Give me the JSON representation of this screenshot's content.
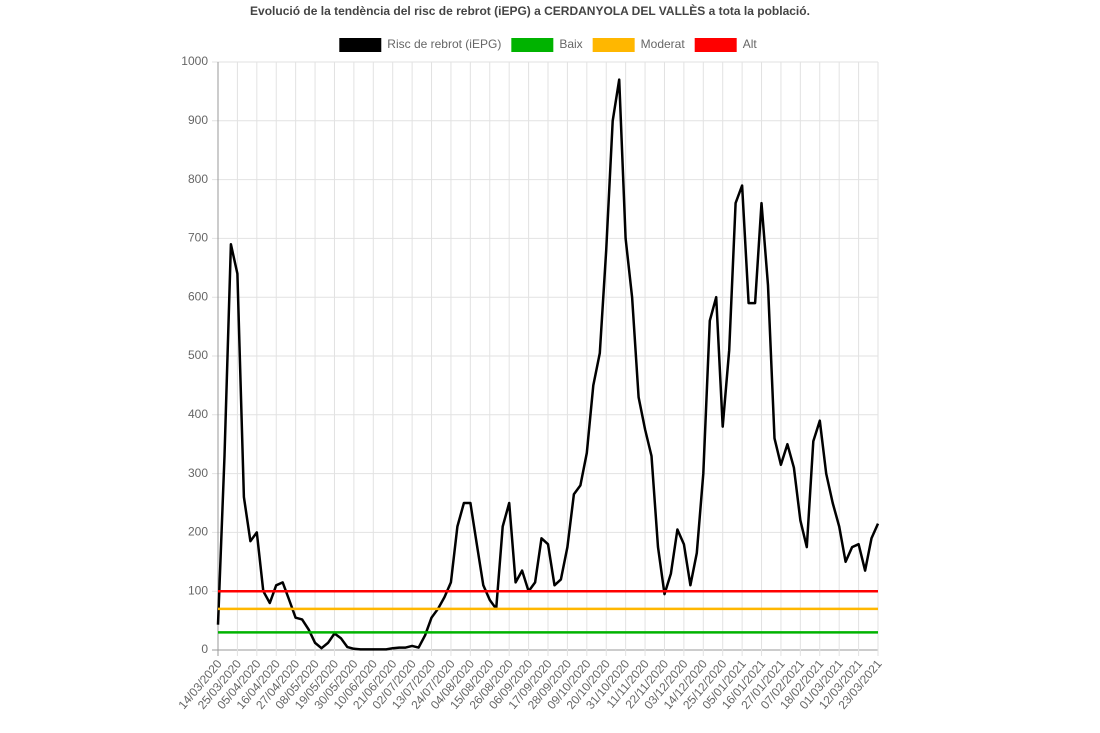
{
  "chart_data": {
    "type": "line",
    "title": "Evolució de la tendència del risc de rebrot (iEPG) a CERDANYOLA DEL VALLÈS a tota la població.",
    "categories": [
      "14/03/2020",
      null,
      null,
      "25/03/2020",
      null,
      null,
      "05/04/2020",
      null,
      null,
      "16/04/2020",
      null,
      null,
      "27/04/2020",
      null,
      null,
      "08/05/2020",
      null,
      null,
      "19/05/2020",
      null,
      null,
      "30/05/2020",
      null,
      null,
      "10/06/2020",
      null,
      null,
      "21/06/2020",
      null,
      null,
      "02/07/2020",
      null,
      null,
      "13/07/2020",
      null,
      null,
      "24/07/2020",
      null,
      null,
      "04/08/2020",
      null,
      null,
      "15/08/2020",
      null,
      null,
      "26/08/2020",
      null,
      null,
      "06/09/2020",
      null,
      null,
      "17/09/2020",
      null,
      null,
      "28/09/2020",
      null,
      null,
      "09/10/2020",
      null,
      null,
      "20/10/2020",
      null,
      null,
      "31/10/2020",
      null,
      null,
      "11/11/2020",
      null,
      null,
      "22/11/2020",
      null,
      null,
      "03/12/2020",
      null,
      null,
      "14/12/2020",
      null,
      null,
      "25/12/2020",
      null,
      null,
      "05/01/2021",
      null,
      null,
      "16/01/2021",
      null,
      null,
      "27/01/2021",
      null,
      null,
      "07/02/2021",
      null,
      null,
      "18/02/2021",
      null,
      null,
      "01/03/2021",
      null,
      null,
      "12/03/2021",
      null,
      null,
      "23/03/2021"
    ],
    "series": [
      {
        "name": "Risc de rebrot (iEPG)",
        "color": "#000000",
        "values": [
          43,
          330,
          690,
          640,
          260,
          185,
          200,
          100,
          80,
          110,
          115,
          85,
          55,
          52,
          35,
          12,
          3,
          12,
          28,
          20,
          5,
          2,
          1,
          1,
          1,
          1,
          1,
          3,
          4,
          4,
          7,
          4,
          25,
          55,
          70,
          90,
          115,
          210,
          250,
          250,
          180,
          110,
          85,
          70,
          210,
          250,
          115,
          135,
          100,
          115,
          190,
          180,
          110,
          120,
          175,
          265,
          280,
          335,
          450,
          505,
          680,
          900,
          970,
          700,
          600,
          430,
          375,
          330,
          175,
          95,
          130,
          205,
          180,
          110,
          165,
          300,
          560,
          600,
          380,
          510,
          760,
          790,
          590,
          590,
          760,
          620,
          360,
          315,
          350,
          310,
          220,
          175,
          355,
          390,
          300,
          250,
          210,
          150,
          175,
          180,
          135,
          190,
          215
        ]
      },
      {
        "name": "Baix",
        "color": "#00b300",
        "value": 30
      },
      {
        "name": "Moderat",
        "color": "#ffb700",
        "value": 70
      },
      {
        "name": "Alt",
        "color": "#ff0000",
        "value": 100
      }
    ],
    "ylim": [
      0,
      1000
    ],
    "yticks": [
      0,
      100,
      200,
      300,
      400,
      500,
      600,
      700,
      800,
      900,
      1000
    ],
    "grid": true,
    "legend": "top"
  }
}
